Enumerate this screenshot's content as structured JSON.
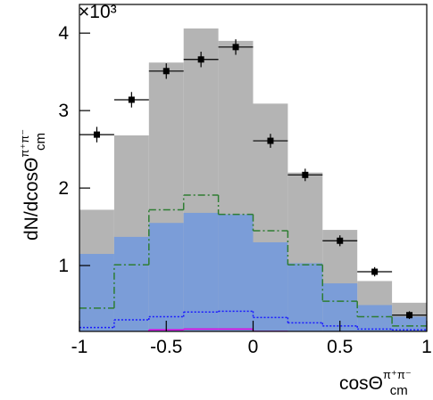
{
  "chart_data": {
    "type": "histogram",
    "y_multiplier": "×10³",
    "ylabel": {
      "text": "dN/dcosΘ",
      "sup": "π⁺π⁻",
      "sub": "cm"
    },
    "xlabel": {
      "text": "cosΘ",
      "sup": "π⁺π⁻",
      "sub": "cm"
    },
    "bins": [
      -1,
      -0.8,
      -0.6,
      -0.4,
      -0.2,
      0,
      0.2,
      0.4,
      0.6,
      0.8,
      1
    ],
    "xlim": [
      -1,
      1
    ],
    "xticks": [
      -1,
      -0.5,
      0,
      0.5,
      1
    ],
    "ylim": [
      0.15,
      4.37
    ],
    "yticks": [
      1,
      2,
      3,
      4
    ],
    "series": [
      {
        "style": "fill",
        "color": "#b4b4b4",
        "values": [
          1.72,
          2.68,
          3.62,
          4.06,
          3.9,
          3.09,
          2.2,
          1.46,
          0.8,
          0.52
        ]
      },
      {
        "style": "fill",
        "color": "#7b9dd8",
        "values": [
          1.15,
          1.37,
          1.55,
          1.68,
          1.66,
          1.3,
          1.03,
          0.77,
          0.49,
          0.34
        ]
      },
      {
        "style": "dashdot",
        "color": "#2e7d32",
        "values": [
          0.45,
          1.01,
          1.72,
          1.91,
          1.66,
          1.45,
          1.01,
          0.54,
          0.34,
          0.22
        ]
      },
      {
        "style": "dotted",
        "color": "#1a1aff",
        "values": [
          0.2,
          0.3,
          0.34,
          0.4,
          0.41,
          0.33,
          0.26,
          0.22,
          0.18,
          0.17
        ]
      },
      {
        "style": "solid",
        "color": "#e000e0",
        "values": [
          0.1,
          0.12,
          0.17,
          0.18,
          0.18,
          0.15,
          0.12,
          0.1,
          0.08,
          0.07
        ]
      },
      {
        "style": "points",
        "color": "#000000",
        "values": [
          2.69,
          3.14,
          3.51,
          3.66,
          3.82,
          2.61,
          2.17,
          1.32,
          0.92,
          0.36
        ],
        "errors": [
          0.1,
          0.1,
          0.1,
          0.1,
          0.1,
          0.09,
          0.08,
          0.07,
          0.06,
          0.05
        ]
      }
    ]
  }
}
